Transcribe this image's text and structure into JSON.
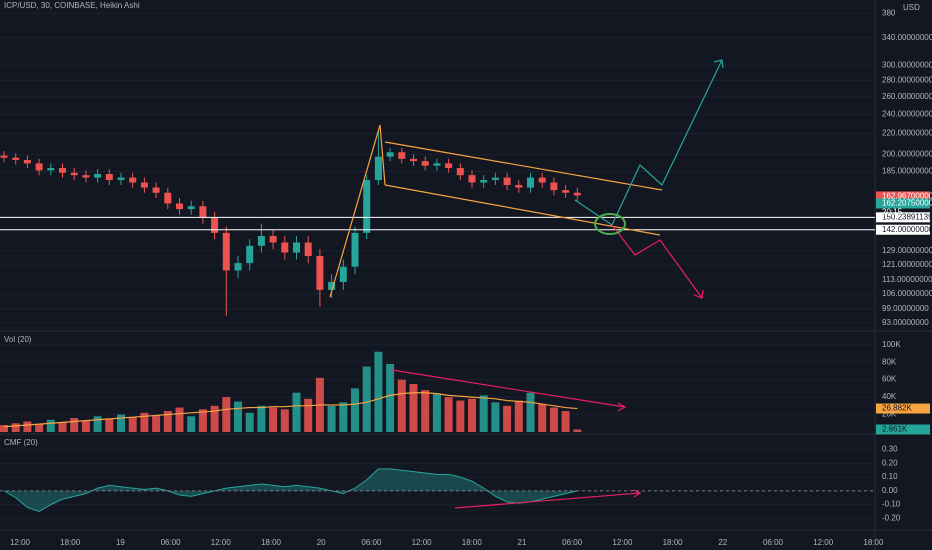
{
  "header": {
    "symbol": "ICP/USD, 30, COINBASE, Heikin Ashi",
    "currency": "USD",
    "countdown": "20:15"
  },
  "time_axis": [
    "12:00",
    "18:00",
    "19",
    "06:00",
    "12:00",
    "18:00",
    "20",
    "06:00",
    "12:00",
    "18:00",
    "21",
    "06:00",
    "12:00",
    "18:00",
    "22",
    "06:00",
    "12:00",
    "18:00"
  ],
  "chart_data": [
    {
      "type": "candlestick",
      "log": true,
      "up_color": "#26a69a",
      "down_color": "#ef5350",
      "open": [
        199,
        197,
        195,
        192,
        186,
        188,
        184,
        182,
        180,
        183,
        178,
        180,
        176,
        172,
        168,
        160,
        156,
        158,
        150,
        140,
        118,
        122,
        132,
        138,
        134,
        128,
        134,
        126,
        108,
        112,
        120,
        140,
        178,
        198,
        202,
        196,
        194,
        190,
        192,
        188,
        182,
        176,
        178,
        180,
        174,
        172,
        180,
        176,
        170,
        168
      ],
      "high": [
        203,
        201,
        199,
        196,
        192,
        192,
        188,
        186,
        187,
        187,
        184,
        184,
        180,
        176,
        172,
        164,
        162,
        162,
        154,
        144,
        126,
        136,
        146,
        142,
        138,
        138,
        138,
        130,
        116,
        124,
        144,
        182,
        222,
        206,
        206,
        200,
        198,
        196,
        196,
        192,
        186,
        182,
        184,
        184,
        178,
        184,
        184,
        180,
        174,
        172
      ],
      "low": [
        193,
        191,
        188,
        182,
        182,
        180,
        178,
        176,
        176,
        174,
        174,
        172,
        168,
        164,
        156,
        152,
        152,
        146,
        136,
        96,
        114,
        118,
        128,
        130,
        124,
        124,
        122,
        100,
        104,
        108,
        116,
        136,
        174,
        194,
        192,
        190,
        186,
        186,
        184,
        178,
        172,
        172,
        174,
        170,
        168,
        168,
        172,
        166,
        164,
        162
      ],
      "close": [
        197,
        195,
        192,
        186,
        188,
        184,
        182,
        180,
        183,
        178,
        180,
        176,
        172,
        168,
        160,
        156,
        158,
        150,
        140,
        118,
        122,
        132,
        138,
        134,
        128,
        134,
        126,
        108,
        112,
        120,
        140,
        178,
        198,
        202,
        196,
        194,
        190,
        192,
        188,
        182,
        176,
        178,
        180,
        174,
        172,
        180,
        176,
        170,
        168,
        166
      ],
      "ylim": [
        90,
        400
      ],
      "yticks": [
        380,
        {
          "value": 340,
          "label": "340.00000000"
        },
        {
          "value": 300,
          "label": "300.00000000"
        },
        {
          "value": 280,
          "label": "280.00000000"
        },
        {
          "value": 260,
          "label": "260.00000000"
        },
        {
          "value": 240,
          "label": "240.00000000"
        },
        {
          "value": 220,
          "label": "220.00000000"
        },
        {
          "value": 200,
          "label": "200.00000000"
        },
        {
          "value": 185,
          "label": "185.00000000"
        },
        {
          "value": 129,
          "label": "129.00000000"
        },
        {
          "value": 121,
          "label": "121.00000000"
        },
        {
          "value": 113,
          "label": "113.00000000"
        },
        {
          "value": 106,
          "label": "106.00000000"
        },
        {
          "value": 99,
          "label": "99.00000000"
        },
        {
          "value": 93,
          "label": "93.00000000"
        }
      ],
      "price_lines": [
        {
          "value": 150.23891139,
          "label": "150.23891139"
        },
        {
          "value": 142,
          "label": "142.00000000"
        }
      ],
      "last_labels": [
        {
          "value": 162.967,
          "label": "162.96700000",
          "color": "#ef5350"
        },
        {
          "value": 162.2075,
          "label": "162.20750000",
          "color": "#26a69a"
        }
      ]
    },
    {
      "type": "bar",
      "title": "Vol (20)",
      "ma_color": "#f7a440",
      "values": [
        8,
        10,
        12,
        9,
        14,
        11,
        16,
        13,
        18,
        15,
        20,
        17,
        22,
        19,
        24,
        28,
        18,
        26,
        30,
        40,
        35,
        22,
        30,
        28,
        26,
        45,
        38,
        62,
        30,
        34,
        50,
        75,
        92,
        78,
        60,
        55,
        48,
        44,
        40,
        36,
        38,
        42,
        34,
        30,
        36,
        45,
        32,
        28,
        24,
        2.861
      ],
      "ma_values": [
        6,
        7,
        8,
        9,
        10,
        11,
        12,
        13,
        14,
        15,
        16,
        17,
        18,
        19,
        20,
        21,
        22,
        23,
        24,
        26,
        27,
        28,
        28,
        29,
        29,
        30,
        30,
        31,
        31,
        31,
        32,
        34,
        38,
        42,
        44,
        45,
        45,
        44,
        42,
        41,
        40,
        39,
        38,
        36,
        35,
        34,
        32,
        30,
        28,
        26.882
      ],
      "ylim": [
        0,
        110
      ],
      "yticks": [
        {
          "value": 100,
          "label": "100K"
        },
        {
          "value": 80,
          "label": "80K"
        },
        {
          "value": 60,
          "label": "60K"
        },
        {
          "value": 40,
          "label": "40K"
        },
        {
          "value": 20,
          "label": "20K"
        }
      ],
      "last_labels": [
        {
          "value": 26.882,
          "label": "26.882K",
          "color": "#f7a440"
        },
        {
          "value": 2.861,
          "label": "2.861K",
          "color": "#26a69a"
        }
      ]
    },
    {
      "type": "area",
      "title": "CMF (20)",
      "color": "#26a69a",
      "values": [
        0,
        -0.05,
        -0.12,
        -0.15,
        -0.1,
        -0.06,
        -0.04,
        -0.02,
        0.02,
        0.04,
        0.03,
        0.02,
        0.01,
        0.02,
        0,
        -0.03,
        -0.04,
        -0.02,
        0,
        0.02,
        0.03,
        0.04,
        0.05,
        0.04,
        0.03,
        0.04,
        0.03,
        0.02,
        0,
        -0.02,
        0.02,
        0.08,
        0.16,
        0.16,
        0.15,
        0.14,
        0.13,
        0.12,
        0.12,
        0.1,
        0.07,
        0.02,
        -0.04,
        -0.08,
        -0.09,
        -0.08,
        -0.06,
        -0.04,
        -0.02,
        0
      ],
      "ylim": [
        -0.27,
        0.37
      ],
      "yticks": [
        {
          "value": 0.3,
          "label": "0.30"
        },
        {
          "value": 0.2,
          "label": "0.20"
        },
        {
          "value": 0.1,
          "label": "0.10"
        },
        {
          "value": 0,
          "label": "0.00"
        },
        {
          "value": -0.1,
          "label": "-0.10"
        },
        {
          "value": -0.2,
          "label": "-0.20"
        }
      ]
    }
  ]
}
